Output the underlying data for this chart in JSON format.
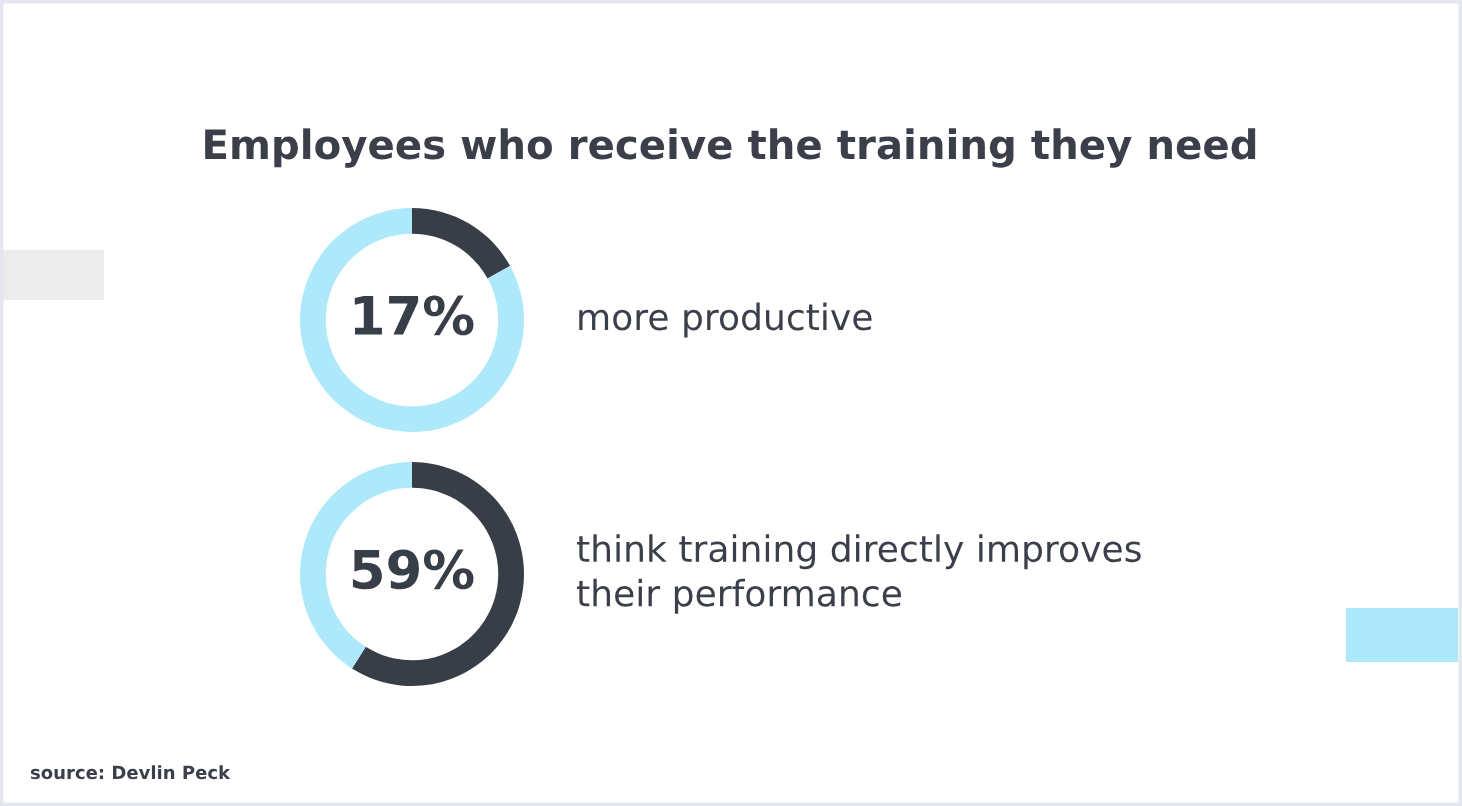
{
  "chart_data": [
    {
      "type": "donut",
      "title": "Employees who receive the training they need",
      "categories": [
        null,
        null
      ],
      "values": [
        17,
        83
      ],
      "colors": [
        "#373e48",
        "#aee9fb"
      ],
      "value_labels": [
        "17%",
        null
      ],
      "annotations": [
        "more productive"
      ]
    },
    {
      "type": "donut",
      "categories": [
        null,
        null
      ],
      "values": [
        59,
        41
      ],
      "colors": [
        "#373e48",
        "#aee9fb"
      ],
      "value_labels": [
        "59%",
        null
      ],
      "annotations": [
        "think training directly improves their performance",
        "source: Devlin Peck"
      ]
    }
  ]
}
